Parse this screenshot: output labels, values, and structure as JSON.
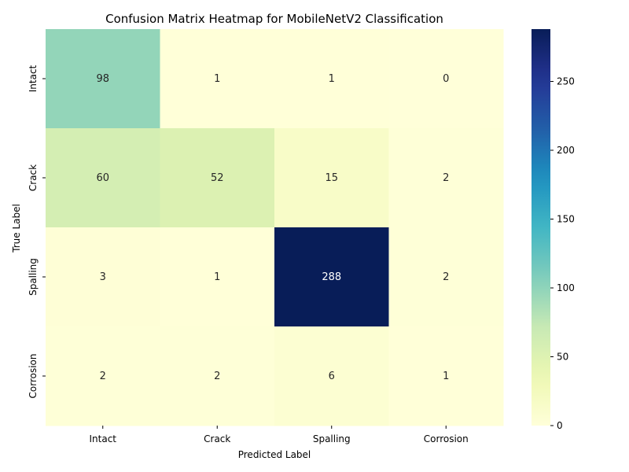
{
  "chart_data": {
    "type": "heatmap",
    "title": "Confusion Matrix Heatmap for MobileNetV2 Classification",
    "xlabel": "Predicted Label",
    "ylabel": "True Label",
    "x_categories": [
      "Intact",
      "Crack",
      "Spalling",
      "Corrosion"
    ],
    "y_categories": [
      "Intact",
      "Crack",
      "Spalling",
      "Corrosion"
    ],
    "values": [
      [
        98,
        1,
        1,
        0
      ],
      [
        60,
        52,
        15,
        2
      ],
      [
        3,
        1,
        288,
        2
      ],
      [
        2,
        2,
        6,
        1
      ]
    ],
    "colormap": "YlGnBu",
    "colorbar": {
      "range": [
        0,
        288
      ],
      "ticks": [
        0,
        50,
        100,
        150,
        200,
        250
      ]
    }
  }
}
